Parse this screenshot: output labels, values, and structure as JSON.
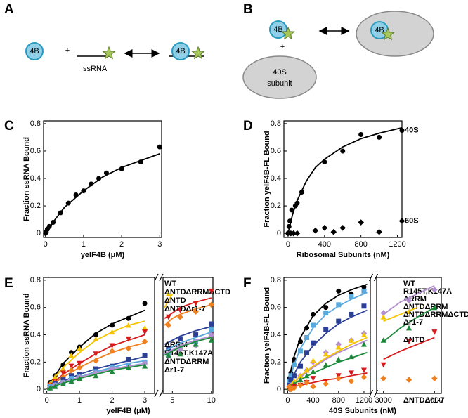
{
  "panel_labels": [
    "A",
    "B",
    "C",
    "D",
    "E",
    "F"
  ],
  "diagram_a": {
    "protein": "4B",
    "plus": "+",
    "rna": "ssRNA",
    "complex_protein": "4B"
  },
  "diagram_b": {
    "protein": "4B",
    "plus": "+",
    "subunit_line1": "40S",
    "subunit_line2": "subunit",
    "complex_protein": "4B"
  },
  "chart_data": [
    {
      "type": "scatter",
      "x_label": "yeIF4B (μM)",
      "y_label": "Fraction ssRNA Bound",
      "xlim": [
        -0.05,
        3.05
      ],
      "xticks": [
        0,
        1,
        2,
        3
      ],
      "ylim": [
        -0.03,
        0.82
      ],
      "yticks": [
        0,
        0.2,
        0.4,
        0.6,
        0.8
      ],
      "fit_x": [
        0,
        0.1,
        0.25,
        0.5,
        0.75,
        1,
        1.5,
        2,
        2.5,
        3
      ],
      "series": [
        {
          "color": "#000000",
          "marker": "circle",
          "x": [
            0,
            0.02,
            0.05,
            0.1,
            0.2,
            0.4,
            0.6,
            0.8,
            1.0,
            1.2,
            1.4,
            1.6,
            2.0,
            2.5,
            3.0
          ],
          "values": [
            0,
            0.01,
            0.03,
            0.05,
            0.08,
            0.15,
            0.22,
            0.28,
            0.31,
            0.36,
            0.4,
            0.44,
            0.47,
            0.52,
            0.63
          ],
          "fit": [
            0,
            0.04,
            0.1,
            0.19,
            0.25,
            0.31,
            0.41,
            0.48,
            0.53,
            0.58
          ]
        }
      ]
    },
    {
      "type": "scatter",
      "x_label": "Ribosomal Subunits (nM)",
      "y_label": "Fraction yeIF4B-FL Bound",
      "xlim": [
        -46,
        1250
      ],
      "xticks": [
        0,
        400,
        800,
        1200
      ],
      "ylim": [
        -0.03,
        0.82
      ],
      "yticks": [
        0,
        0.2,
        0.4,
        0.6,
        0.8
      ],
      "series": [
        {
          "name": "40S",
          "color": "#000000",
          "marker": "circle",
          "x": [
            0,
            10,
            20,
            40,
            80,
            100,
            150,
            400,
            600,
            800,
            1000,
            1250
          ],
          "values": [
            0,
            0.05,
            0.09,
            0.17,
            0.2,
            0.22,
            0.3,
            0.52,
            0.6,
            0.72,
            0.7,
            0.75
          ],
          "fit_x": [
            0,
            25,
            50,
            100,
            200,
            300,
            400,
            600,
            800,
            1000,
            1250
          ],
          "fit": [
            0,
            0.07,
            0.14,
            0.24,
            0.38,
            0.48,
            0.54,
            0.63,
            0.69,
            0.73,
            0.77
          ]
        },
        {
          "name": "60S",
          "color": "#000000",
          "marker": "diamond",
          "x": [
            0,
            30,
            60,
            100,
            300,
            400,
            500,
            600,
            800,
            1000,
            1250
          ],
          "values": [
            0,
            0,
            0,
            0,
            0.02,
            0.04,
            0.01,
            0.04,
            0.08,
            0.01,
            0.09
          ]
        }
      ]
    },
    {
      "type": "scatter",
      "x_label": "yeIF4B (μM)",
      "y_label": "Fraction ssRNA Bound",
      "x_segments": [
        {
          "xlim": [
            -0.1,
            3.3
          ],
          "xticks": [
            0,
            1,
            2,
            3
          ]
        },
        {
          "xlim": [
            3.8,
            10.2
          ],
          "xticks": [
            5,
            10
          ]
        }
      ],
      "ylim": [
        -0.03,
        0.82
      ],
      "yticks": [
        0,
        0.2,
        0.4,
        0.6,
        0.8
      ],
      "x": [
        0.1,
        0.25,
        0.5,
        0.75,
        1,
        1.5,
        2,
        2.5,
        3,
        4.5,
        6,
        8,
        10
      ],
      "fit_x": [
        0,
        0.25,
        0.5,
        1,
        1.5,
        2,
        2.5,
        3,
        3.6,
        4,
        5,
        6,
        8,
        10
      ],
      "series": [
        {
          "name": "WT",
          "color": "#000000",
          "marker": "circle",
          "values": [
            0.05,
            0.1,
            0.18,
            0.27,
            0.31,
            0.4,
            0.47,
            0.52,
            0.63,
            null,
            null,
            null,
            null
          ],
          "fit": [
            0,
            0.1,
            0.19,
            0.31,
            0.41,
            0.48,
            0.53,
            0.58,
            null,
            null,
            null,
            null,
            null,
            null
          ]
        },
        {
          "name": "ΔNTDΔRRMΔCTD",
          "color": "#f5c400",
          "marker": "triangle",
          "values": [
            0.04,
            0.09,
            0.15,
            0.25,
            0.3,
            0.37,
            0.42,
            0.47,
            0.45,
            0.7,
            null,
            null,
            null
          ],
          "fit": [
            0,
            0.09,
            0.16,
            0.27,
            0.36,
            0.42,
            0.47,
            0.5,
            null,
            0.6,
            0.7,
            null,
            null,
            null
          ]
        },
        {
          "name": "ΔNTD",
          "color": "#d7191c",
          "marker": "triangle-down",
          "values": [
            0.03,
            0.06,
            0.12,
            0.17,
            0.19,
            0.26,
            0.32,
            0.37,
            0.42,
            0.53,
            0.58,
            0.63,
            0.72
          ],
          "fit": [
            0,
            0.06,
            0.11,
            0.19,
            0.26,
            0.32,
            0.36,
            0.4,
            null,
            0.52,
            0.56,
            0.6,
            0.64,
            0.67
          ]
        },
        {
          "name": "ΔNTDΔr1-7",
          "color": "#f07f1e",
          "marker": "diamond",
          "values": [
            0.03,
            0.05,
            0.09,
            0.14,
            0.16,
            0.21,
            0.28,
            0.3,
            0.35,
            0.47,
            0.53,
            0.57,
            0.62
          ],
          "fit": [
            0,
            0.05,
            0.09,
            0.16,
            0.22,
            0.27,
            0.31,
            0.34,
            null,
            0.47,
            0.52,
            0.55,
            0.59,
            0.62
          ]
        },
        {
          "name": "ΔRRM",
          "color": "#2b3f97",
          "marker": "square",
          "values": [
            0.02,
            0.04,
            0.07,
            0.1,
            0.11,
            0.15,
            0.17,
            0.22,
            0.25,
            0.3,
            0.37,
            0.4,
            0.48
          ],
          "fit": [
            0,
            0.03,
            0.06,
            0.11,
            0.15,
            0.18,
            0.21,
            0.24,
            null,
            0.33,
            0.36,
            0.39,
            0.43,
            0.46
          ]
        },
        {
          "name": "R145T,K147A",
          "color": "#5aa9dd",
          "marker": "square",
          "values": [
            0.02,
            0.03,
            0.05,
            0.08,
            0.09,
            0.13,
            0.16,
            0.18,
            0.2,
            0.25,
            0.3,
            0.35,
            0.44
          ],
          "fit": [
            0,
            0.03,
            0.05,
            0.09,
            0.13,
            0.16,
            0.19,
            0.21,
            null,
            0.28,
            0.31,
            0.34,
            0.38,
            0.42
          ]
        },
        {
          "name": "ΔNTDΔRRM",
          "color": "#b48fd0",
          "marker": "diamond",
          "values": [
            0.01,
            0.03,
            0.05,
            0.06,
            0.09,
            0.12,
            0.15,
            0.16,
            0.19,
            0.24,
            0.29,
            0.32,
            0.4
          ],
          "fit": [
            0,
            0.025,
            0.05,
            0.09,
            0.12,
            0.15,
            0.17,
            0.19,
            null,
            0.26,
            0.29,
            0.32,
            0.36,
            0.39
          ]
        },
        {
          "name": "Δr1-7",
          "color": "#1d8a3b",
          "marker": "triangle",
          "values": [
            0.01,
            0.02,
            0.04,
            0.06,
            0.08,
            0.1,
            0.13,
            0.16,
            0.17,
            0.25,
            0.26,
            0.33,
            0.36
          ],
          "fit": [
            0,
            0.025,
            0.045,
            0.08,
            0.11,
            0.14,
            0.16,
            0.18,
            null,
            0.25,
            0.28,
            0.31,
            0.35,
            0.38
          ]
        }
      ]
    },
    {
      "type": "scatter",
      "x_label": "40S Subunits (nM)",
      "y_label": "Fraction yeIF4B-FL Bound",
      "x_segments": [
        {
          "xlim": [
            -60,
            1300
          ],
          "xticks": [
            0,
            400,
            800,
            1200
          ]
        },
        {
          "xlim": [
            2600,
            6400
          ],
          "xticks": [
            3000,
            6000
          ]
        }
      ],
      "ylim": [
        -0.03,
        0.82
      ],
      "yticks": [
        0,
        0.2,
        0.4,
        0.6,
        0.8
      ],
      "x": [
        25,
        50,
        100,
        200,
        300,
        400,
        600,
        800,
        1000,
        1200,
        3000,
        4500,
        6000
      ],
      "fit_x": [
        0,
        50,
        100,
        200,
        400,
        600,
        800,
        1000,
        1250,
        2000,
        3000,
        4000,
        5000,
        6000
      ],
      "series": [
        {
          "name": "WT",
          "color": "#000000",
          "marker": "circle",
          "values": [
            0.08,
            0.12,
            0.22,
            0.35,
            0.45,
            0.55,
            0.6,
            0.72,
            0.7,
            0.75,
            null,
            null,
            null
          ],
          "fit": [
            0,
            0.14,
            0.24,
            0.38,
            0.54,
            0.63,
            0.69,
            0.73,
            0.77,
            null,
            null,
            null,
            null,
            null
          ]
        },
        {
          "name": "R145T,K147A",
          "color": "#5aa9dd",
          "marker": "square",
          "values": [
            0.06,
            0.1,
            0.18,
            0.28,
            0.38,
            0.47,
            0.56,
            0.62,
            0.68,
            0.72,
            null,
            null,
            null
          ],
          "fit": [
            0,
            0.1,
            0.18,
            0.3,
            0.45,
            0.55,
            0.61,
            0.66,
            0.71,
            null,
            null,
            null,
            null,
            null
          ]
        },
        {
          "name": "ΔRRM",
          "color": "#2b3f97",
          "marker": "square",
          "values": [
            0.03,
            0.07,
            0.1,
            0.17,
            0.27,
            0.34,
            0.44,
            0.5,
            0.55,
            0.61,
            null,
            null,
            null
          ],
          "fit": [
            0,
            0.06,
            0.11,
            0.2,
            0.32,
            0.41,
            0.48,
            0.53,
            0.58,
            null,
            null,
            null,
            null,
            null
          ]
        },
        {
          "name": "ΔNTDΔRRM",
          "color": "#b48fd0",
          "marker": "diamond",
          "values": [
            0.02,
            0.03,
            0.05,
            0.1,
            0.14,
            0.2,
            0.27,
            0.33,
            0.36,
            0.41,
            0.56,
            0.65,
            0.73
          ],
          "fit": [
            0,
            0.03,
            0.05,
            0.09,
            0.16,
            0.22,
            0.27,
            0.31,
            0.36,
            null,
            0.55,
            0.64,
            0.7,
            0.76
          ]
        },
        {
          "name": "ΔNTDΔRRMΔCTD",
          "color": "#f5c400",
          "marker": "triangle",
          "values": [
            0.02,
            0.03,
            0.06,
            0.1,
            0.14,
            0.21,
            0.26,
            0.31,
            0.36,
            0.4,
            0.53,
            0.57,
            null
          ],
          "fit": [
            0,
            0.03,
            0.05,
            0.1,
            0.17,
            0.23,
            0.28,
            0.33,
            0.38,
            null,
            0.5,
            0.55,
            0.6,
            null
          ]
        },
        {
          "name": "Δr1-7",
          "color": "#1d8a3b",
          "marker": "triangle",
          "values": [
            0.01,
            0.02,
            0.04,
            0.07,
            0.1,
            0.13,
            0.18,
            0.22,
            0.24,
            0.33,
            0.36,
            0.45,
            0.6
          ],
          "fit": [
            0,
            0.02,
            0.04,
            0.07,
            0.12,
            0.16,
            0.2,
            0.23,
            0.27,
            null,
            0.35,
            0.45,
            0.53,
            0.6
          ]
        },
        {
          "name": "ΔNTD",
          "color": "#d7191c",
          "marker": "triangle-down",
          "values": [
            0,
            0.01,
            0.02,
            0.03,
            0.05,
            0.08,
            0.06,
            0.1,
            0.12,
            0.14,
            0.18,
            0.35,
            0.42
          ],
          "fit": [
            0,
            0.01,
            0.02,
            0.03,
            0.05,
            0.07,
            0.08,
            0.1,
            0.12,
            null,
            0.22,
            0.28,
            0.33,
            0.38
          ]
        },
        {
          "name": "ΔNTDΔr1-7",
          "color": "#f07f1e",
          "marker": "diamond",
          "values": [
            0.02,
            0,
            0.01,
            0.03,
            0.05,
            0.02,
            0.04,
            0.08,
            0.06,
            0.09,
            0.08,
            0.07,
            0.08
          ]
        }
      ]
    }
  ]
}
